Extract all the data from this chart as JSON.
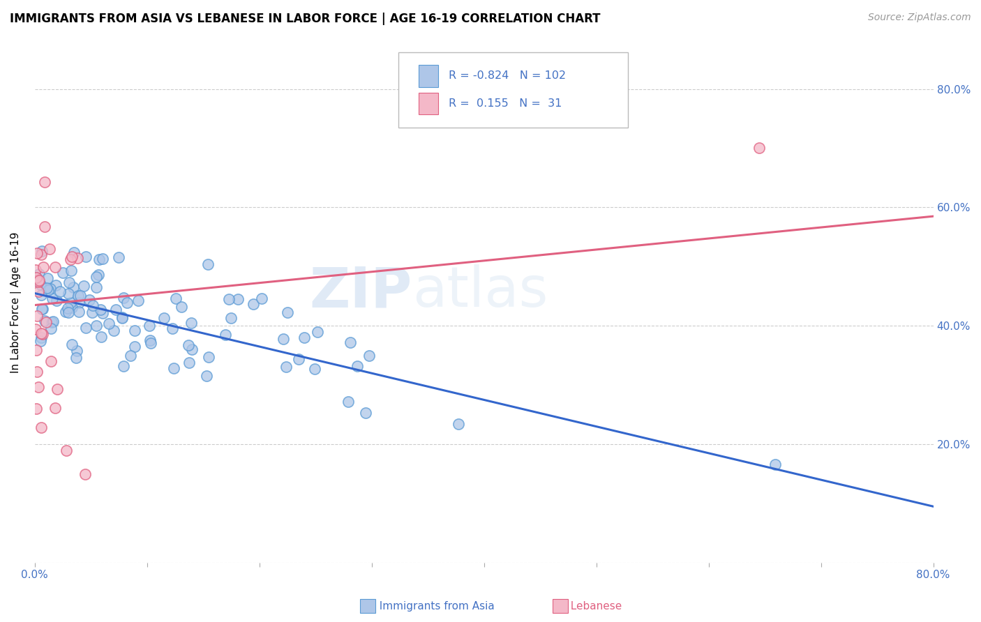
{
  "title": "IMMIGRANTS FROM ASIA VS LEBANESE IN LABOR FORCE | AGE 16-19 CORRELATION CHART",
  "source": "Source: ZipAtlas.com",
  "ylabel": "In Labor Force | Age 16-19",
  "xmin": 0.0,
  "xmax": 0.8,
  "ymin": 0.0,
  "ymax": 0.88,
  "watermark_zip": "ZIP",
  "watermark_atlas": "atlas",
  "legend_R_asia": "-0.824",
  "legend_N_asia": "102",
  "legend_R_leb": "0.155",
  "legend_N_leb": "31",
  "color_asia_fill": "#aec6e8",
  "color_asia_edge": "#5b9bd5",
  "color_leb_fill": "#f4b8c8",
  "color_leb_edge": "#e06080",
  "color_asia_line": "#3366cc",
  "color_leb_line": "#e06080",
  "color_text_blue": "#4472c4",
  "color_text_dark": "#333333",
  "background_color": "#ffffff",
  "grid_color": "#cccccc",
  "ytick_values": [
    0.0,
    0.2,
    0.4,
    0.6,
    0.8
  ],
  "xtick_values": [
    0.0,
    0.1,
    0.2,
    0.3,
    0.4,
    0.5,
    0.6,
    0.7,
    0.8
  ],
  "asia_line_x0": 0.0,
  "asia_line_y0": 0.455,
  "asia_line_x1": 0.8,
  "asia_line_y1": 0.095,
  "leb_line_x0": 0.0,
  "leb_line_y0": 0.435,
  "leb_line_x1": 0.8,
  "leb_line_y1": 0.585
}
